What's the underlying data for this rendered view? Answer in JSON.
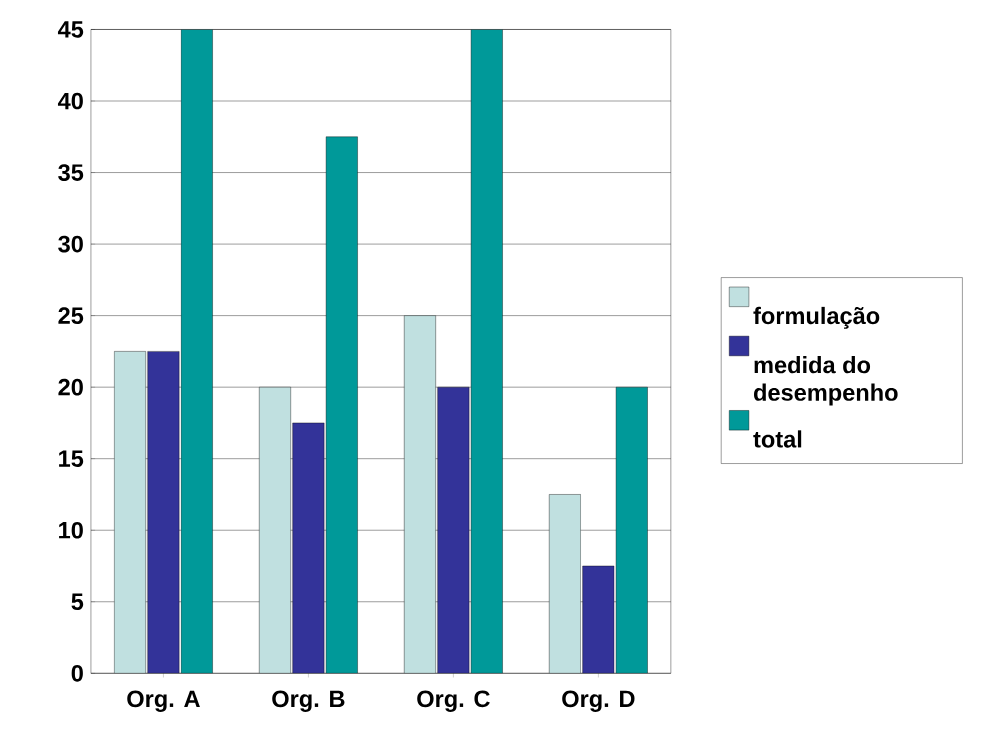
{
  "chart_data": {
    "type": "bar",
    "categories": [
      "Org. A",
      "Org. B",
      "Org. C",
      "Org. D"
    ],
    "series": [
      {
        "name": "formulação",
        "color": "#c0e0e0",
        "values": [
          22.5,
          20,
          25,
          12.5
        ]
      },
      {
        "name": "medida do desempenho",
        "color": "#333399",
        "values": [
          22.5,
          17.5,
          20,
          7.5
        ]
      },
      {
        "name": "total",
        "color": "#009999",
        "values": [
          45,
          37.5,
          45,
          20
        ]
      }
    ],
    "ylim": [
      0,
      45
    ],
    "yticks": [
      0,
      5,
      10,
      15,
      20,
      25,
      30,
      35,
      40,
      45
    ],
    "grid": "y",
    "legend": "right"
  }
}
